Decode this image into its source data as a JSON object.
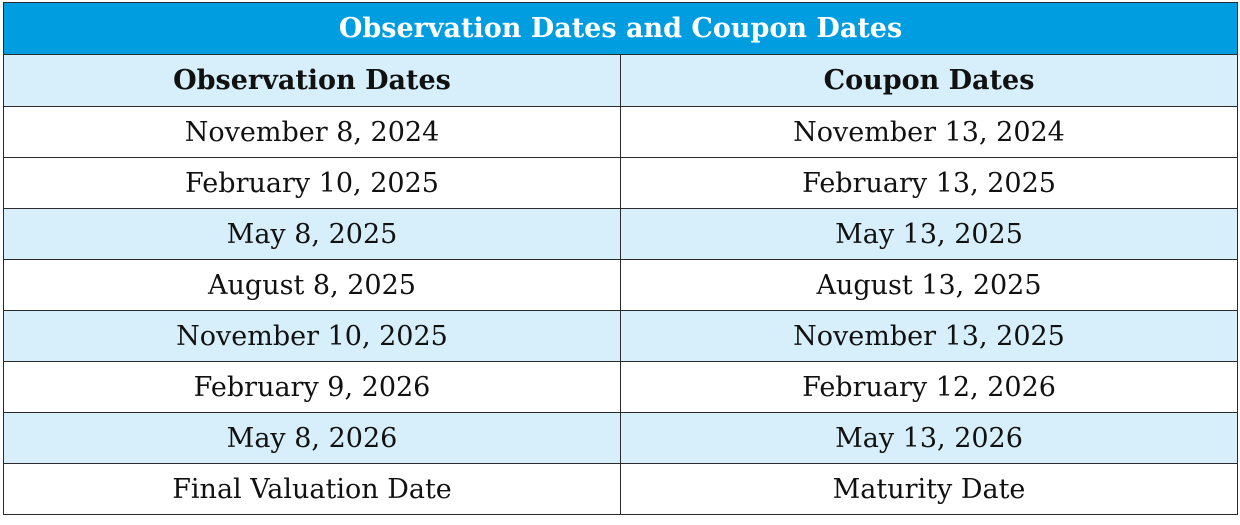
{
  "table": {
    "title": "Observation Dates and Coupon Dates",
    "headers": [
      "Observation Dates",
      "Coupon Dates"
    ],
    "rows": [
      {
        "observation": "November 8, 2024",
        "coupon": "November 13, 2024"
      },
      {
        "observation": "February 10, 2025",
        "coupon": "February 13, 2025"
      },
      {
        "observation": "May 8, 2025",
        "coupon": "May 13, 2025"
      },
      {
        "observation": "August 8, 2025",
        "coupon": "August 13, 2025"
      },
      {
        "observation": "November 10, 2025",
        "coupon": "November 13, 2025"
      },
      {
        "observation": "February 9, 2026",
        "coupon": "February 12, 2026"
      },
      {
        "observation": "May 8, 2026",
        "coupon": "May 13, 2026"
      },
      {
        "observation": "Final Valuation Date",
        "coupon": "Maturity Date"
      }
    ]
  },
  "colors": {
    "title_background": "#009ee0",
    "shaded_row_background": "#d7eefb",
    "border": "#2a2a2a"
  }
}
